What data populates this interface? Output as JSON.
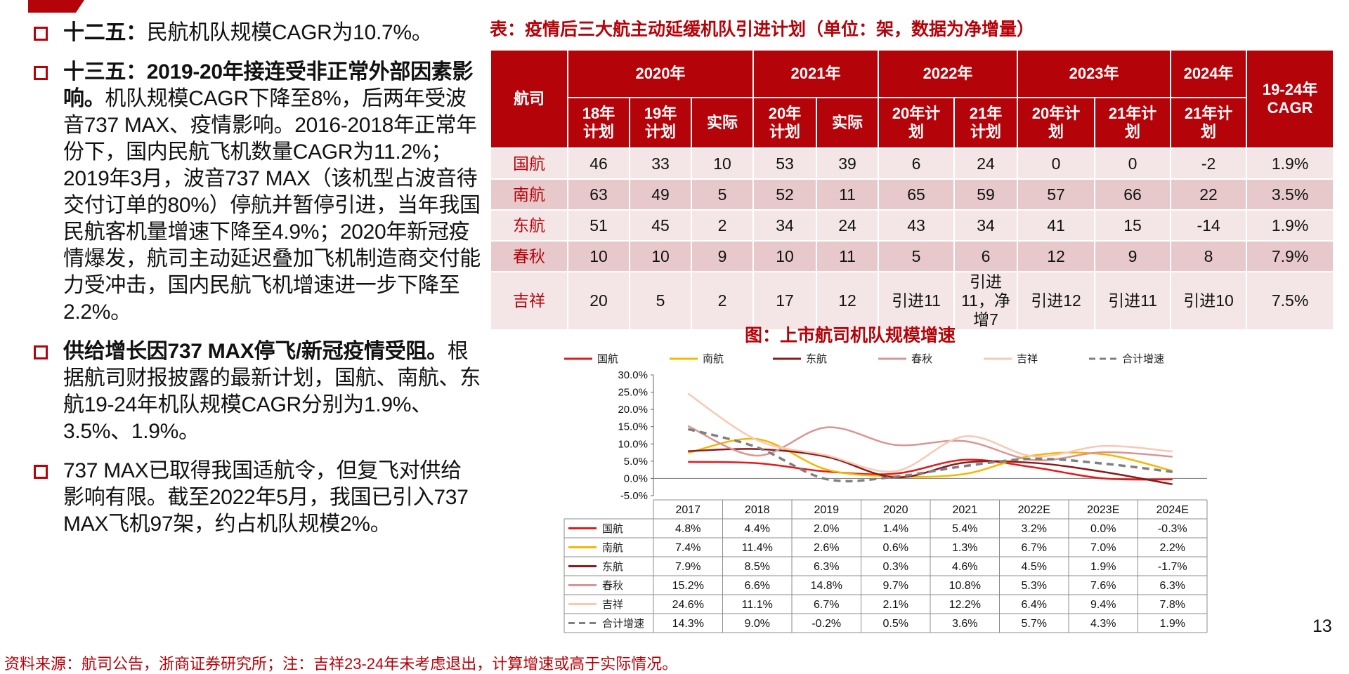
{
  "bullets": [
    {
      "bold": "十二五：",
      "text": "民航机队规模CAGR为10.7%。"
    },
    {
      "bold": "十三五：2019-20年接连受非正常外部因素影响。",
      "text": "机队规模CAGR下降至8%，后两年受波音737 MAX、疫情影响。2016-2018年正常年份下，国内民航飞机数量CAGR为11.2%；2019年3月，波音737 MAX（该机型占波音待交付订单的80%）停航并暂停引进，当年我国民航客机量增速下降至4.9%；2020年新冠疫情爆发，航司主动延迟叠加飞机制造商交付能力受冲击，国内民航飞机增速进一步下降至2.2%。"
    },
    {
      "bold": "供给增长因737 MAX停飞/新冠疫情受阻。",
      "text": "根据航司财报披露的最新计划，国航、南航、东航19-24年机队规模CAGR分别为1.9%、3.5%、1.9%。"
    },
    {
      "bold": "",
      "text": "737 MAX已取得我国适航令，但复飞对供给影响有限。截至2022年5月，我国已引入737 MAX飞机97架，约占机队规模2%。"
    }
  ],
  "table": {
    "title": "表：疫情后三大航主动延缓机队引进计划（单位：架，数据为净增量）",
    "airline_header": "航司",
    "cagr_header": "19-24年CAGR",
    "years": [
      "2020年",
      "2021年",
      "2022年",
      "2023年",
      "2024年"
    ],
    "subheaders": [
      "18年计划",
      "19年计划",
      "实际",
      "20年计划",
      "实际",
      "20年计划",
      "21年计划",
      "20年计划",
      "21年计划",
      "21年计划"
    ],
    "rows": [
      {
        "airline": "国航",
        "cells": [
          "46",
          "33",
          "10",
          "53",
          "39",
          "6",
          "24",
          "0",
          "0",
          "-2"
        ],
        "cagr": "1.9%"
      },
      {
        "airline": "南航",
        "cells": [
          "63",
          "49",
          "5",
          "52",
          "11",
          "65",
          "59",
          "57",
          "66",
          "22"
        ],
        "cagr": "3.5%"
      },
      {
        "airline": "东航",
        "cells": [
          "51",
          "45",
          "2",
          "34",
          "24",
          "43",
          "34",
          "41",
          "15",
          "-14"
        ],
        "cagr": "1.9%"
      },
      {
        "airline": "春秋",
        "cells": [
          "10",
          "10",
          "9",
          "10",
          "11",
          "5",
          "6",
          "12",
          "9",
          "8"
        ],
        "cagr": "7.9%"
      },
      {
        "airline": "吉祥",
        "cells": [
          "20",
          "5",
          "2",
          "17",
          "12",
          "引进11",
          "引进11，净增7",
          "引进12",
          "引进11",
          "引进10"
        ],
        "cagr": "7.5%"
      }
    ]
  },
  "chart_title": "图：上市航司机队规模增速",
  "chart_data": {
    "type": "line",
    "title": "",
    "xlabel": "",
    "ylabel": "",
    "categories": [
      "2017",
      "2018",
      "2019",
      "2020",
      "2021",
      "2022E",
      "2023E",
      "2024E"
    ],
    "y_ticks": [
      "30.0%",
      "25.0%",
      "20.0%",
      "15.0%",
      "10.0%",
      "5.0%",
      "0.0%",
      "-5.0%"
    ],
    "ylim": [
      -5,
      30
    ],
    "legend_position": "top",
    "series": [
      {
        "name": "国航",
        "color": "#e31a1c",
        "dashed": false,
        "values": [
          4.8,
          4.4,
          2.0,
          1.4,
          5.4,
          3.2,
          0.0,
          -0.3
        ],
        "labels": [
          "4.8%",
          "4.4%",
          "2.0%",
          "1.4%",
          "5.4%",
          "3.2%",
          "0.0%",
          "-0.3%"
        ]
      },
      {
        "name": "南航",
        "color": "#f5b800",
        "dashed": false,
        "values": [
          7.4,
          11.4,
          2.6,
          0.6,
          1.3,
          6.7,
          7.0,
          2.2
        ],
        "labels": [
          "7.4%",
          "11.4%",
          "2.6%",
          "0.6%",
          "1.3%",
          "6.7%",
          "7.0%",
          "2.2%"
        ]
      },
      {
        "name": "东航",
        "color": "#8b1a1a",
        "dashed": false,
        "values": [
          7.9,
          8.5,
          6.3,
          0.3,
          4.6,
          4.5,
          1.9,
          -1.7
        ],
        "labels": [
          "7.9%",
          "8.5%",
          "6.3%",
          "0.3%",
          "4.6%",
          "4.5%",
          "1.9%",
          "-1.7%"
        ]
      },
      {
        "name": "春秋",
        "color": "#d99594",
        "dashed": false,
        "values": [
          15.2,
          6.6,
          14.8,
          9.7,
          10.8,
          5.3,
          7.6,
          6.3
        ],
        "labels": [
          "15.2%",
          "6.6%",
          "14.8%",
          "9.7%",
          "10.8%",
          "5.3%",
          "7.6%",
          "6.3%"
        ]
      },
      {
        "name": "吉祥",
        "color": "#f7c9b3",
        "dashed": false,
        "values": [
          24.6,
          11.1,
          6.7,
          2.1,
          12.2,
          6.4,
          9.4,
          7.8
        ],
        "labels": [
          "24.6%",
          "11.1%",
          "6.7%",
          "2.1%",
          "12.2%",
          "6.4%",
          "9.4%",
          "7.8%"
        ]
      },
      {
        "name": "合计增速",
        "color": "#808080",
        "dashed": true,
        "values": [
          14.3,
          9.0,
          -0.2,
          0.5,
          3.6,
          5.7,
          4.3,
          1.9
        ],
        "labels": [
          "14.3%",
          "9.0%",
          "-0.2%",
          "0.5%",
          "3.6%",
          "5.7%",
          "4.3%",
          "1.9%"
        ]
      }
    ]
  },
  "page_number": "13",
  "source": "资料来源：航司公告，浙商证券研究所；注：吉祥23-24年未考虑退出，计算增速或高于实际情况。"
}
